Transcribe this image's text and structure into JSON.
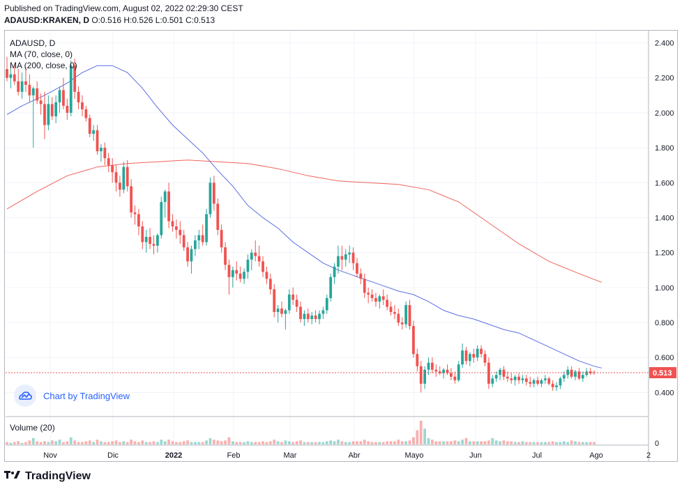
{
  "header": {
    "published": "Published on TradingView.com, August 02, 2022 02:29:30 CEST",
    "symbol": "ADAUSD:KRAKEN, D",
    "ohlc": "O:0.516 H:0.526 L:0.501 C:0.513"
  },
  "legend": {
    "series": "ADAUSD, D",
    "ma70": "MA (70, close, 0)",
    "ma200": "MA (200, close, 0)",
    "volume": "Volume (20)"
  },
  "watermark": "Chart by TradingView",
  "footer_brand": "TradingView",
  "icons": [
    "tradingview-logo-icon",
    "tradingview-cloud-icon"
  ],
  "colors": {
    "up": "#26a69a",
    "down": "#ef5350",
    "ma70": "#5b6ee1",
    "ma200": "#f0625a",
    "price_label": "#ef5350",
    "watermark": "#2962ff"
  },
  "chart_data": {
    "type": "candlestick",
    "title": "ADAUSD, D",
    "y_ticks": [
      "2.400",
      "2.200",
      "2.000",
      "1.800",
      "1.600",
      "1.400",
      "1.200",
      "1.000",
      "0.800",
      "0.600",
      "0.400"
    ],
    "ylim": [
      0.27,
      2.47
    ],
    "x_ticks": [
      "Nov",
      "Dic",
      "2022",
      "Feb",
      "Mar",
      "Abr",
      "Mayo",
      "Jun",
      "Jul",
      "Ago",
      "2"
    ],
    "last_price": "0.513",
    "volume_tick": "0",
    "grid": true,
    "ohlc_shape": [
      [
        2.25,
        2.32,
        2.18,
        2.2
      ],
      [
        2.2,
        2.27,
        2.14,
        2.22
      ],
      [
        2.22,
        2.28,
        2.16,
        2.18
      ],
      [
        2.18,
        2.25,
        2.1,
        2.12
      ],
      [
        2.12,
        2.23,
        2.08,
        2.18
      ],
      [
        2.18,
        2.26,
        2.12,
        2.16
      ],
      [
        2.16,
        2.22,
        2.06,
        2.1
      ],
      [
        2.1,
        2.15,
        1.8,
        2.14
      ],
      [
        2.14,
        2.18,
        2.05,
        2.07
      ],
      [
        2.07,
        2.11,
        1.99,
        2.05
      ],
      [
        2.05,
        2.12,
        1.85,
        1.93
      ],
      [
        1.93,
        2.1,
        1.9,
        2.05
      ],
      [
        2.05,
        2.09,
        1.96,
        1.98
      ],
      [
        1.98,
        2.1,
        1.94,
        2.06
      ],
      [
        2.06,
        2.15,
        2.0,
        2.13
      ],
      [
        2.13,
        2.2,
        2.02,
        2.04
      ],
      [
        2.04,
        2.08,
        1.96,
        2.0
      ],
      [
        2.0,
        2.3,
        1.98,
        2.27
      ],
      [
        2.27,
        2.31,
        2.08,
        2.12
      ],
      [
        2.12,
        2.15,
        2.02,
        2.06
      ],
      [
        2.06,
        2.1,
        1.98,
        2.02
      ],
      [
        2.02,
        2.04,
        1.95,
        1.97
      ],
      [
        1.97,
        1.99,
        1.86,
        1.88
      ],
      [
        1.88,
        1.93,
        1.84,
        1.9
      ],
      [
        1.9,
        1.93,
        1.76,
        1.78
      ],
      [
        1.78,
        1.82,
        1.72,
        1.8
      ],
      [
        1.8,
        1.83,
        1.7,
        1.74
      ],
      [
        1.74,
        1.77,
        1.66,
        1.7
      ],
      [
        1.7,
        1.74,
        1.6,
        1.66
      ],
      [
        1.66,
        1.7,
        1.55,
        1.6
      ],
      [
        1.6,
        1.64,
        1.52,
        1.56
      ],
      [
        1.56,
        1.72,
        1.54,
        1.69
      ],
      [
        1.69,
        1.73,
        1.55,
        1.58
      ],
      [
        1.58,
        1.62,
        1.4,
        1.43
      ],
      [
        1.43,
        1.47,
        1.36,
        1.42
      ],
      [
        1.42,
        1.45,
        1.3,
        1.35
      ],
      [
        1.35,
        1.38,
        1.22,
        1.26
      ],
      [
        1.26,
        1.33,
        1.2,
        1.29
      ],
      [
        1.29,
        1.34,
        1.22,
        1.25
      ],
      [
        1.25,
        1.3,
        1.19,
        1.24
      ],
      [
        1.24,
        1.31,
        1.2,
        1.3
      ],
      [
        1.3,
        1.52,
        1.28,
        1.49
      ],
      [
        1.49,
        1.56,
        1.4,
        1.55
      ],
      [
        1.55,
        1.6,
        1.34,
        1.38
      ],
      [
        1.38,
        1.42,
        1.32,
        1.35
      ],
      [
        1.35,
        1.39,
        1.28,
        1.33
      ],
      [
        1.33,
        1.38,
        1.25,
        1.3
      ],
      [
        1.3,
        1.33,
        1.21,
        1.23
      ],
      [
        1.23,
        1.26,
        1.12,
        1.15
      ],
      [
        1.15,
        1.24,
        1.08,
        1.22
      ],
      [
        1.22,
        1.3,
        1.18,
        1.27
      ],
      [
        1.27,
        1.33,
        1.22,
        1.3
      ],
      [
        1.3,
        1.36,
        1.24,
        1.26
      ],
      [
        1.26,
        1.45,
        1.24,
        1.42
      ],
      [
        1.42,
        1.63,
        1.4,
        1.6
      ],
      [
        1.6,
        1.64,
        1.44,
        1.48
      ],
      [
        1.48,
        1.51,
        1.3,
        1.33
      ],
      [
        1.33,
        1.36,
        1.2,
        1.23
      ],
      [
        1.23,
        1.26,
        1.1,
        1.13
      ],
      [
        1.13,
        1.16,
        0.96,
        1.06
      ],
      [
        1.06,
        1.12,
        1.0,
        1.1
      ],
      [
        1.1,
        1.15,
        1.04,
        1.08
      ],
      [
        1.08,
        1.12,
        1.03,
        1.05
      ],
      [
        1.05,
        1.11,
        1.02,
        1.09
      ],
      [
        1.09,
        1.19,
        1.05,
        1.16
      ],
      [
        1.16,
        1.22,
        1.1,
        1.2
      ],
      [
        1.2,
        1.27,
        1.15,
        1.18
      ],
      [
        1.18,
        1.24,
        1.12,
        1.15
      ],
      [
        1.15,
        1.18,
        1.06,
        1.09
      ],
      [
        1.09,
        1.12,
        1.02,
        1.05
      ],
      [
        1.05,
        1.08,
        0.96,
        0.99
      ],
      [
        0.99,
        1.02,
        0.83,
        0.86
      ],
      [
        0.86,
        0.9,
        0.8,
        0.88
      ],
      [
        0.88,
        0.92,
        0.83,
        0.85
      ],
      [
        0.85,
        0.88,
        0.76,
        0.87
      ],
      [
        0.87,
        0.99,
        0.85,
        0.96
      ],
      [
        0.96,
        1.0,
        0.9,
        0.93
      ],
      [
        0.93,
        0.96,
        0.86,
        0.89
      ],
      [
        0.89,
        0.92,
        0.8,
        0.82
      ],
      [
        0.82,
        0.87,
        0.78,
        0.85
      ],
      [
        0.85,
        0.88,
        0.8,
        0.82
      ],
      [
        0.82,
        0.86,
        0.79,
        0.84
      ],
      [
        0.84,
        0.87,
        0.8,
        0.82
      ],
      [
        0.82,
        0.87,
        0.79,
        0.85
      ],
      [
        0.85,
        0.89,
        0.82,
        0.87
      ],
      [
        0.87,
        0.96,
        0.85,
        0.94
      ],
      [
        0.94,
        1.08,
        0.92,
        1.06
      ],
      [
        1.06,
        1.14,
        1.02,
        1.12
      ],
      [
        1.12,
        1.24,
        1.08,
        1.18
      ],
      [
        1.18,
        1.24,
        1.1,
        1.16
      ],
      [
        1.16,
        1.22,
        1.12,
        1.19
      ],
      [
        1.19,
        1.24,
        1.14,
        1.2
      ],
      [
        1.2,
        1.23,
        1.1,
        1.14
      ],
      [
        1.14,
        1.17,
        1.06,
        1.08
      ],
      [
        1.08,
        1.11,
        1.02,
        1.05
      ],
      [
        1.05,
        1.08,
        0.94,
        0.97
      ],
      [
        0.97,
        1.0,
        0.91,
        0.96
      ],
      [
        0.96,
        0.99,
        0.92,
        0.94
      ],
      [
        0.94,
        0.97,
        0.89,
        0.92
      ],
      [
        0.92,
        0.96,
        0.88,
        0.95
      ],
      [
        0.95,
        0.99,
        0.9,
        0.93
      ],
      [
        0.93,
        0.96,
        0.87,
        0.89
      ],
      [
        0.89,
        0.92,
        0.84,
        0.86
      ],
      [
        0.86,
        0.9,
        0.82,
        0.85
      ],
      [
        0.85,
        0.88,
        0.78,
        0.8
      ],
      [
        0.8,
        0.83,
        0.76,
        0.79
      ],
      [
        0.79,
        0.92,
        0.77,
        0.9
      ],
      [
        0.9,
        0.93,
        0.76,
        0.78
      ],
      [
        0.78,
        0.81,
        0.6,
        0.62
      ],
      [
        0.62,
        0.65,
        0.52,
        0.55
      ],
      [
        0.55,
        0.58,
        0.4,
        0.45
      ],
      [
        0.45,
        0.55,
        0.42,
        0.53
      ],
      [
        0.53,
        0.6,
        0.5,
        0.57
      ],
      [
        0.57,
        0.6,
        0.51,
        0.53
      ],
      [
        0.53,
        0.56,
        0.49,
        0.52
      ],
      [
        0.52,
        0.55,
        0.5,
        0.51
      ],
      [
        0.51,
        0.54,
        0.48,
        0.53
      ],
      [
        0.53,
        0.56,
        0.5,
        0.51
      ],
      [
        0.51,
        0.54,
        0.47,
        0.49
      ],
      [
        0.49,
        0.52,
        0.45,
        0.47
      ],
      [
        0.47,
        0.58,
        0.46,
        0.56
      ],
      [
        0.56,
        0.68,
        0.54,
        0.64
      ],
      [
        0.64,
        0.66,
        0.56,
        0.58
      ],
      [
        0.58,
        0.63,
        0.55,
        0.62
      ],
      [
        0.62,
        0.65,
        0.57,
        0.6
      ],
      [
        0.6,
        0.67,
        0.58,
        0.65
      ],
      [
        0.65,
        0.67,
        0.6,
        0.62
      ],
      [
        0.62,
        0.64,
        0.55,
        0.57
      ],
      [
        0.57,
        0.6,
        0.42,
        0.45
      ],
      [
        0.45,
        0.5,
        0.43,
        0.48
      ],
      [
        0.48,
        0.52,
        0.46,
        0.5
      ],
      [
        0.5,
        0.54,
        0.47,
        0.53
      ],
      [
        0.53,
        0.55,
        0.47,
        0.49
      ],
      [
        0.49,
        0.52,
        0.46,
        0.48
      ],
      [
        0.48,
        0.51,
        0.45,
        0.47
      ],
      [
        0.47,
        0.5,
        0.44,
        0.49
      ],
      [
        0.49,
        0.51,
        0.45,
        0.47
      ],
      [
        0.47,
        0.5,
        0.45,
        0.48
      ],
      [
        0.48,
        0.5,
        0.44,
        0.46
      ],
      [
        0.46,
        0.49,
        0.43,
        0.45
      ],
      [
        0.45,
        0.48,
        0.43,
        0.47
      ],
      [
        0.47,
        0.49,
        0.44,
        0.45
      ],
      [
        0.45,
        0.48,
        0.43,
        0.47
      ],
      [
        0.47,
        0.5,
        0.45,
        0.48
      ],
      [
        0.48,
        0.49,
        0.44,
        0.45
      ],
      [
        0.45,
        0.47,
        0.41,
        0.43
      ],
      [
        0.43,
        0.46,
        0.41,
        0.44
      ],
      [
        0.44,
        0.49,
        0.42,
        0.48
      ],
      [
        0.48,
        0.52,
        0.46,
        0.5
      ],
      [
        0.5,
        0.55,
        0.48,
        0.53
      ],
      [
        0.53,
        0.55,
        0.48,
        0.49
      ],
      [
        0.49,
        0.53,
        0.47,
        0.52
      ],
      [
        0.52,
        0.54,
        0.47,
        0.48
      ],
      [
        0.48,
        0.52,
        0.46,
        0.5
      ],
      [
        0.5,
        0.54,
        0.49,
        0.52
      ],
      [
        0.52,
        0.54,
        0.5,
        0.51
      ],
      [
        0.516,
        0.526,
        0.501,
        0.513
      ]
    ],
    "ma70_shape": [
      [
        0,
        1.99
      ],
      [
        4,
        2.04
      ],
      [
        10,
        2.1
      ],
      [
        16,
        2.17
      ],
      [
        20,
        2.23
      ],
      [
        24,
        2.27
      ],
      [
        28,
        2.27
      ],
      [
        32,
        2.23
      ],
      [
        36,
        2.14
      ],
      [
        40,
        2.03
      ],
      [
        44,
        1.93
      ],
      [
        48,
        1.85
      ],
      [
        52,
        1.77
      ],
      [
        56,
        1.67
      ],
      [
        60,
        1.58
      ],
      [
        64,
        1.47
      ],
      [
        68,
        1.4
      ],
      [
        72,
        1.34
      ],
      [
        76,
        1.26
      ],
      [
        80,
        1.2
      ],
      [
        84,
        1.14
      ],
      [
        88,
        1.1
      ],
      [
        92,
        1.07
      ],
      [
        96,
        1.04
      ],
      [
        100,
        1.01
      ],
      [
        104,
        0.98
      ],
      [
        108,
        0.96
      ],
      [
        112,
        0.92
      ],
      [
        116,
        0.87
      ],
      [
        120,
        0.84
      ],
      [
        124,
        0.82
      ],
      [
        128,
        0.79
      ],
      [
        132,
        0.76
      ],
      [
        136,
        0.74
      ],
      [
        140,
        0.7
      ],
      [
        144,
        0.66
      ],
      [
        148,
        0.62
      ],
      [
        152,
        0.58
      ],
      [
        156,
        0.55
      ],
      [
        158,
        0.54
      ]
    ],
    "ma200_shape": [
      [
        0,
        1.45
      ],
      [
        8,
        1.55
      ],
      [
        16,
        1.64
      ],
      [
        24,
        1.69
      ],
      [
        32,
        1.71
      ],
      [
        40,
        1.72
      ],
      [
        48,
        1.73
      ],
      [
        56,
        1.72
      ],
      [
        64,
        1.71
      ],
      [
        72,
        1.68
      ],
      [
        80,
        1.64
      ],
      [
        88,
        1.61
      ],
      [
        96,
        1.6
      ],
      [
        104,
        1.59
      ],
      [
        112,
        1.56
      ],
      [
        120,
        1.49
      ],
      [
        128,
        1.37
      ],
      [
        136,
        1.25
      ],
      [
        144,
        1.15
      ],
      [
        152,
        1.08
      ],
      [
        158,
        1.03
      ]
    ],
    "volume_shape": [
      3,
      2,
      3,
      4,
      2,
      3,
      5,
      8,
      4,
      3,
      4,
      3,
      5,
      4,
      6,
      3,
      4,
      9,
      5,
      3,
      3,
      4,
      5,
      3,
      6,
      4,
      3,
      3,
      4,
      5,
      3,
      4,
      3,
      6,
      4,
      3,
      5,
      3,
      3,
      4,
      3,
      6,
      4,
      6,
      4,
      3,
      3,
      4,
      5,
      3,
      3,
      3,
      3,
      5,
      8,
      6,
      5,
      4,
      5,
      9,
      4,
      3,
      3,
      3,
      4,
      3,
      3,
      3,
      4,
      3,
      4,
      6,
      4,
      3,
      5,
      4,
      3,
      4,
      5,
      3,
      3,
      3,
      3,
      3,
      3,
      4,
      5,
      4,
      6,
      4,
      3,
      3,
      4,
      4,
      4,
      6,
      4,
      3,
      3,
      3,
      3,
      4,
      4,
      4,
      6,
      4,
      4,
      5,
      9,
      18,
      30,
      20,
      8,
      6,
      4,
      4,
      4,
      4,
      4,
      5,
      4,
      6,
      8,
      4,
      4,
      4,
      4,
      4,
      5,
      8,
      5,
      4,
      5,
      4,
      4,
      3,
      3,
      4,
      3,
      3,
      3,
      3,
      3,
      3,
      3,
      4,
      3,
      3,
      4,
      3,
      5,
      4,
      3,
      3,
      3,
      3,
      3
    ]
  }
}
